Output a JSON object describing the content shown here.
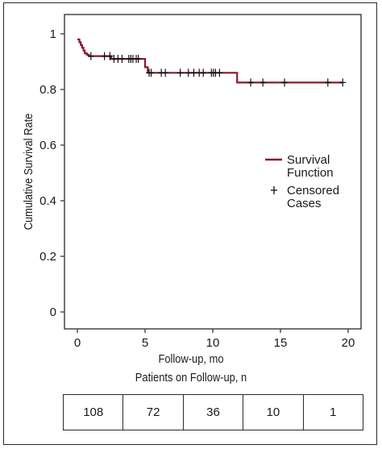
{
  "chart_data": {
    "type": "line",
    "ylabel": "Cumulative Survival Rate",
    "xlabel": "Follow-up, mo",
    "subtitle": "Patients on Follow-up, n",
    "xlim": [
      0,
      20
    ],
    "ylim": [
      0,
      1
    ],
    "xticks": [
      "0",
      "5",
      "10",
      "15",
      "20"
    ],
    "yticks": [
      "0",
      "0.2",
      "0.4",
      "0.6",
      "0.8",
      "1"
    ],
    "xtick_values": [
      0,
      5,
      10,
      15,
      20
    ],
    "ytick_values": [
      0,
      0.2,
      0.4,
      0.6,
      0.8,
      1
    ],
    "series": [
      {
        "name": "Survival Function",
        "color": "#8b1a2b",
        "step_points": [
          [
            0,
            0.98
          ],
          [
            0.15,
            0.97
          ],
          [
            0.25,
            0.96
          ],
          [
            0.35,
            0.95
          ],
          [
            0.45,
            0.94
          ],
          [
            0.55,
            0.93
          ],
          [
            0.7,
            0.925
          ],
          [
            0.85,
            0.92
          ],
          [
            2.5,
            0.91
          ],
          [
            5.0,
            0.88
          ],
          [
            5.2,
            0.86
          ],
          [
            11.8,
            0.825
          ],
          [
            19.6,
            0.825
          ]
        ]
      }
    ],
    "censored": {
      "name": "Censored Cases",
      "x": [
        1.0,
        2.0,
        2.4,
        2.7,
        3.0,
        3.3,
        3.8,
        3.95,
        4.1,
        4.35,
        4.5,
        5.3,
        5.45,
        6.2,
        6.5,
        7.6,
        8.2,
        8.6,
        9.0,
        9.3,
        9.9,
        10.05,
        10.2,
        10.5,
        12.8,
        13.7,
        15.3,
        18.5,
        19.6
      ]
    },
    "legend_position": "right",
    "table": {
      "counts": [
        "108",
        "72",
        "36",
        "10",
        "1"
      ]
    }
  }
}
